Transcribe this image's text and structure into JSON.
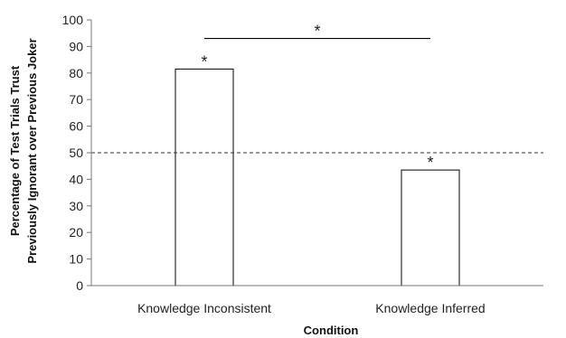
{
  "chart_data": {
    "type": "bar",
    "categories": [
      "Knowledge Inconsistent",
      "Knowledge Inferred"
    ],
    "values": [
      81.5,
      43.5
    ],
    "bar_fill": "#ffffff",
    "bar_stroke": "#000000",
    "bar_annotations": [
      "*",
      "*"
    ],
    "ylim": [
      0,
      100
    ],
    "yticks": [
      0,
      10,
      20,
      30,
      40,
      50,
      60,
      70,
      80,
      90,
      100
    ],
    "ylabel_line1": "Percentage of Test Trials Trust",
    "ylabel_line2": "Previously Ignorant over Previous Joker",
    "xlabel": "Condition",
    "reference_line": {
      "y": 50,
      "style": "dashed"
    },
    "significance_bracket": {
      "from": 0,
      "to": 1,
      "label": "*",
      "y": 93
    },
    "grid": false,
    "legend": "none"
  }
}
